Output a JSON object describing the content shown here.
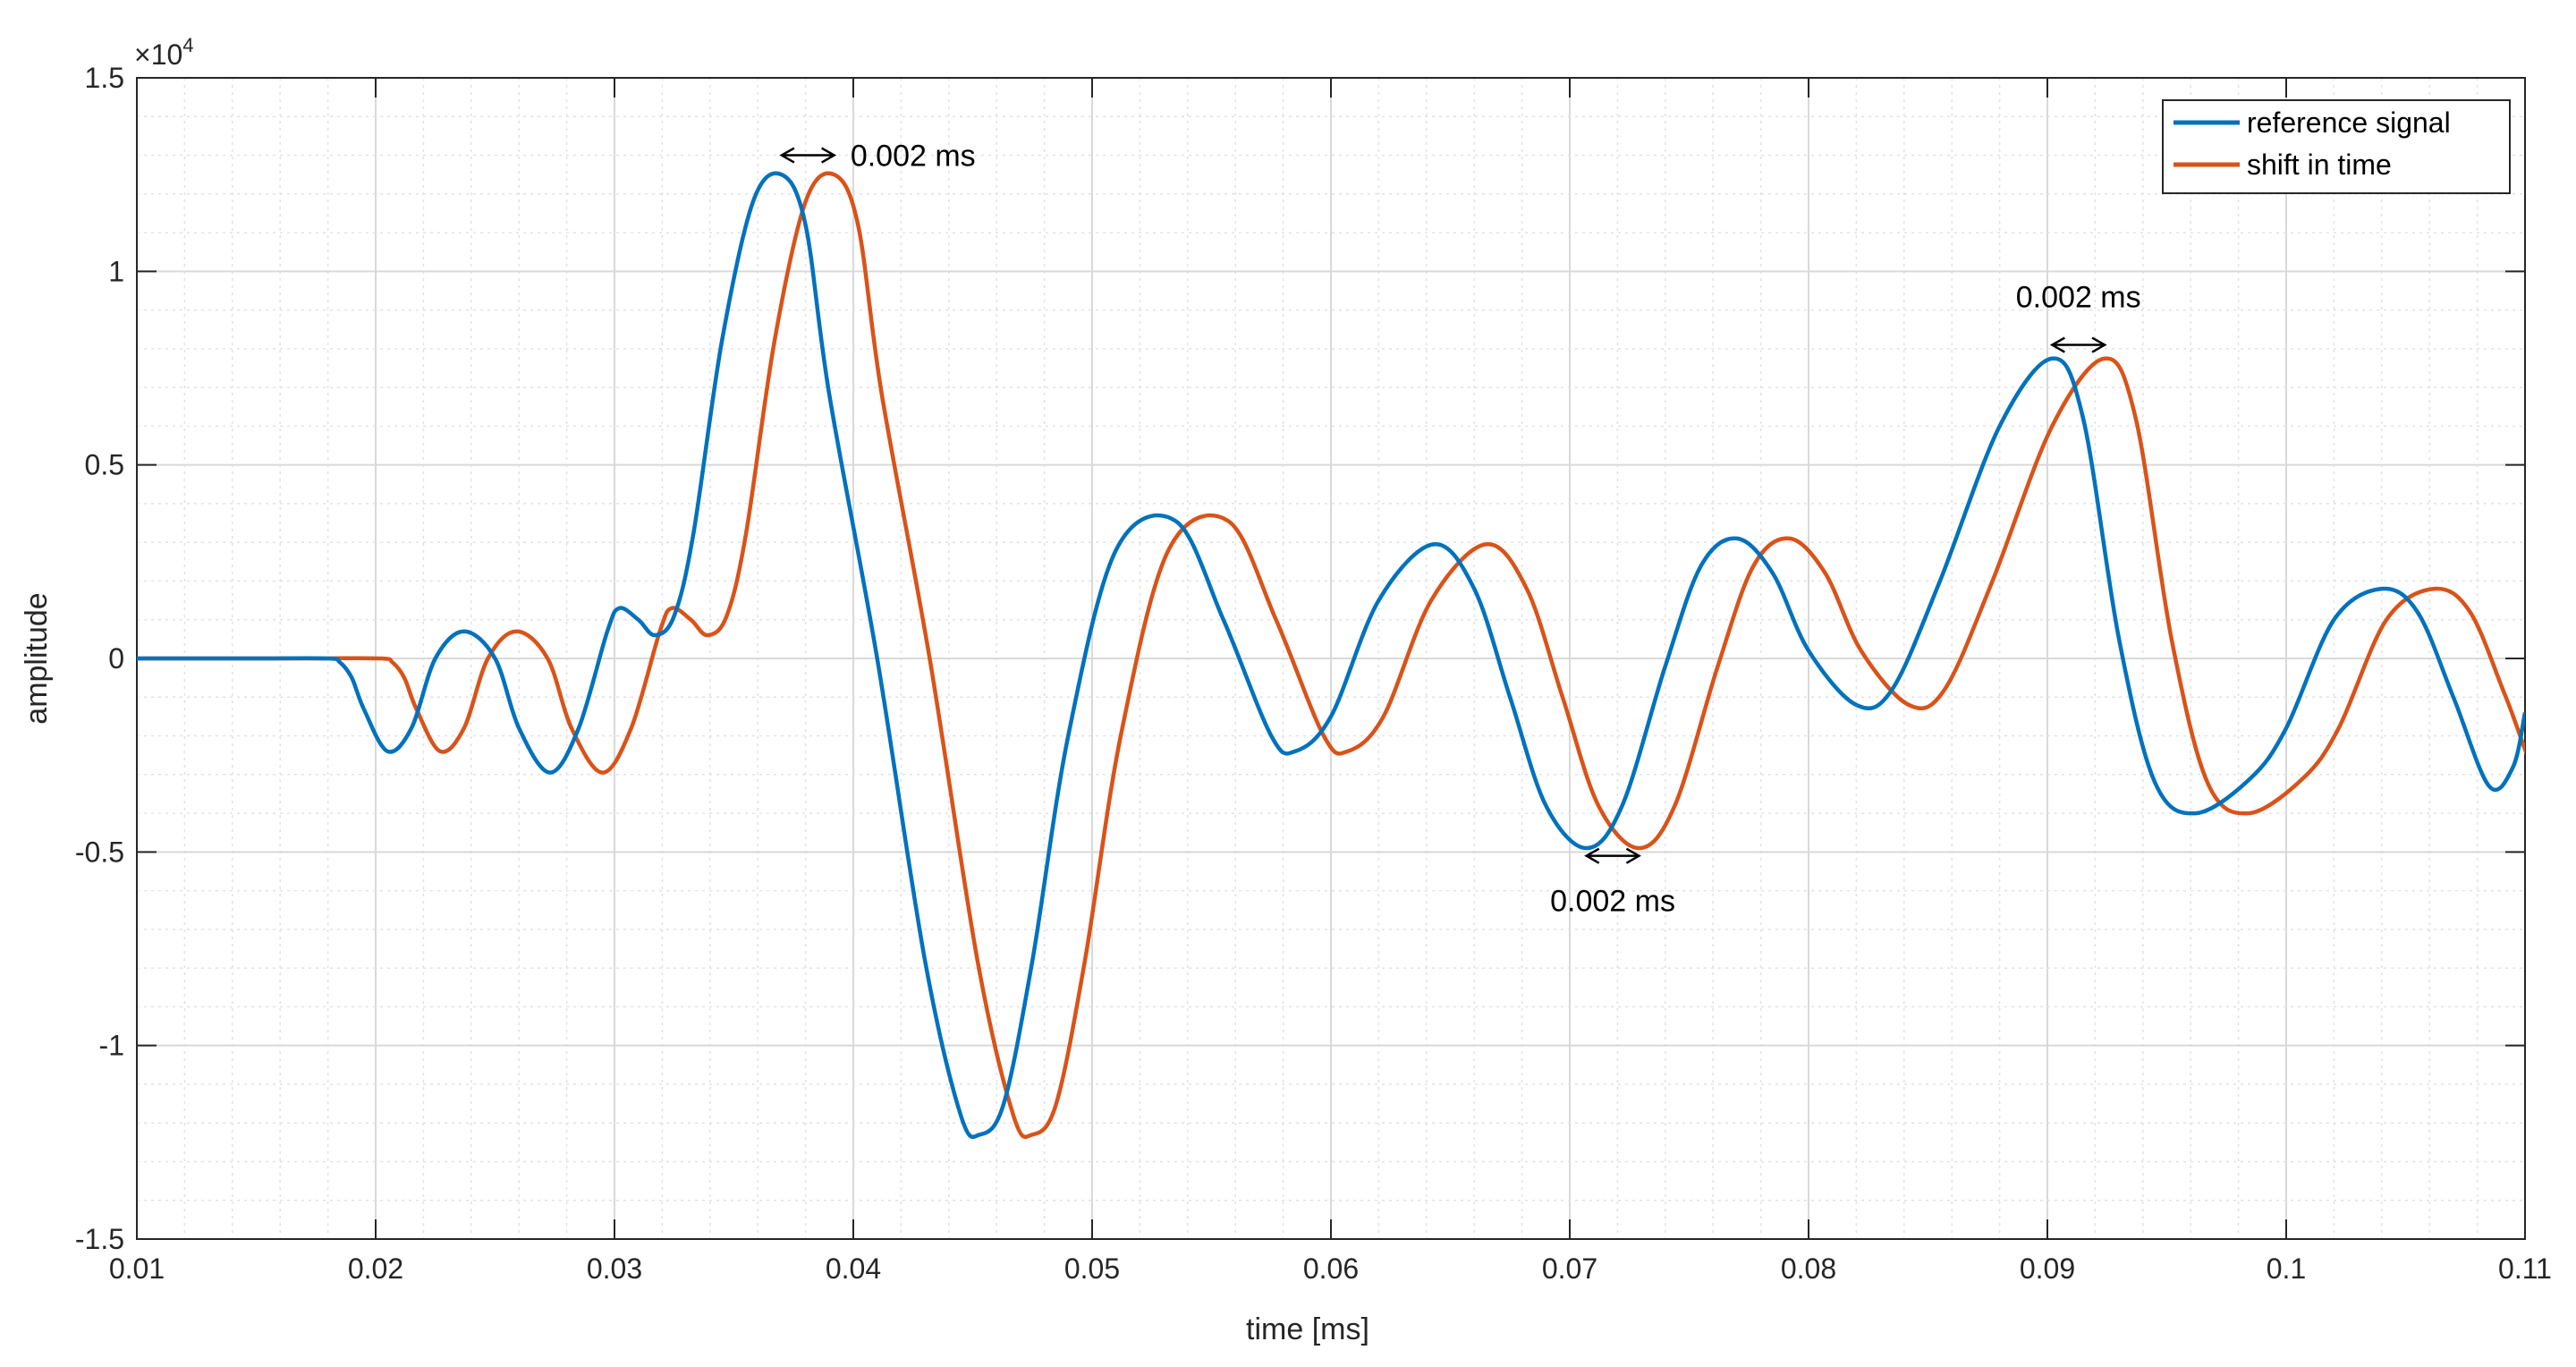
{
  "chart_data": {
    "type": "line",
    "xlabel": "time [ms]",
    "ylabel": "amplitude",
    "xlim": [
      0.01,
      0.11
    ],
    "ylim": [
      -1.5,
      1.5
    ],
    "y_exponent_label": "×10",
    "y_exponent_power": "4",
    "x_ticks": [
      "0.01",
      "0.02",
      "0.03",
      "0.04",
      "0.05",
      "0.06",
      "0.07",
      "0.08",
      "0.09",
      "0.1",
      "0.11"
    ],
    "x_tick_values": [
      0.01,
      0.02,
      0.03,
      0.04,
      0.05,
      0.06,
      0.07,
      0.08,
      0.09,
      0.1,
      0.11
    ],
    "y_ticks": [
      "1.5",
      "1",
      "0.5",
      "0",
      "-0.5",
      "-1",
      "-1.5"
    ],
    "y_tick_values": [
      1.5,
      1,
      0.5,
      0,
      -0.5,
      -1,
      -1.5
    ],
    "grid": "on (major and minor)",
    "legend_position": "top-right",
    "shift": 0.0022,
    "series": [
      {
        "name": "reference signal",
        "color": "#0072BD",
        "points": [
          [
            0.01,
            0.0
          ],
          [
            0.012,
            0.0
          ],
          [
            0.015,
            0.0
          ],
          [
            0.018,
            0.0
          ],
          [
            0.0185,
            -0.01
          ],
          [
            0.019,
            -0.05
          ],
          [
            0.0195,
            -0.13
          ],
          [
            0.0205,
            -0.24
          ],
          [
            0.0215,
            -0.18
          ],
          [
            0.0225,
            0.0
          ],
          [
            0.0237,
            0.07
          ],
          [
            0.025,
            0.0
          ],
          [
            0.026,
            -0.18
          ],
          [
            0.0273,
            -0.295
          ],
          [
            0.0285,
            -0.18
          ],
          [
            0.0297,
            0.07
          ],
          [
            0.0302,
            0.13
          ],
          [
            0.031,
            0.1
          ],
          [
            0.0317,
            0.06
          ],
          [
            0.0325,
            0.11
          ],
          [
            0.0333,
            0.32
          ],
          [
            0.0345,
            0.82
          ],
          [
            0.0358,
            1.18
          ],
          [
            0.037,
            1.25
          ],
          [
            0.038,
            1.12
          ],
          [
            0.039,
            0.68
          ],
          [
            0.041,
            0.0
          ],
          [
            0.043,
            -0.78
          ],
          [
            0.0445,
            -1.18
          ],
          [
            0.0453,
            -1.23
          ],
          [
            0.0463,
            -1.15
          ],
          [
            0.0475,
            -0.78
          ],
          [
            0.049,
            -0.2
          ],
          [
            0.051,
            0.28
          ],
          [
            0.0535,
            0.355
          ],
          [
            0.0555,
            0.1
          ],
          [
            0.0575,
            -0.2
          ],
          [
            0.0585,
            -0.24
          ],
          [
            0.06,
            -0.15
          ],
          [
            0.062,
            0.15
          ],
          [
            0.0643,
            0.295
          ],
          [
            0.066,
            0.18
          ],
          [
            0.0675,
            -0.1
          ],
          [
            0.069,
            -0.38
          ],
          [
            0.0707,
            -0.49
          ],
          [
            0.0722,
            -0.38
          ],
          [
            0.074,
            -0.02
          ],
          [
            0.0755,
            0.24
          ],
          [
            0.077,
            0.31
          ],
          [
            0.0785,
            0.22
          ],
          [
            0.08,
            0.02
          ],
          [
            0.082,
            -0.12
          ],
          [
            0.0835,
            -0.08
          ],
          [
            0.0855,
            0.2
          ],
          [
            0.088,
            0.6
          ],
          [
            0.0902,
            0.775
          ],
          [
            0.0915,
            0.62
          ],
          [
            0.093,
            0.05
          ],
          [
            0.0945,
            -0.32
          ],
          [
            0.0962,
            -0.4
          ],
          [
            0.0985,
            -0.31
          ],
          [
            0.1,
            -0.18
          ],
          [
            0.102,
            0.1
          ],
          [
            0.104,
            0.18
          ],
          [
            0.1055,
            0.12
          ],
          [
            0.107,
            -0.1
          ],
          [
            0.1085,
            -0.33
          ],
          [
            0.1095,
            -0.28
          ],
          [
            0.11,
            -0.14
          ]
        ]
      },
      {
        "name": "shift in time",
        "color": "#D95319",
        "shift_of": "reference signal"
      }
    ],
    "annotations": [
      {
        "text": "0.002 ms",
        "x_from": 0.037,
        "x_to": 0.0392,
        "y": 1.3,
        "label_x": 0.0425,
        "label_y": 1.3,
        "anchor": "middle"
      },
      {
        "text": "0.002 ms",
        "x_from": 0.0707,
        "x_to": 0.0729,
        "y": -0.51,
        "label_x": 0.0718,
        "label_y": -0.625,
        "anchor": "middle"
      },
      {
        "text": "0.002 ms",
        "x_from": 0.0902,
        "x_to": 0.0924,
        "y": 0.81,
        "label_x": 0.0913,
        "label_y": 0.935,
        "anchor": "middle"
      }
    ]
  }
}
